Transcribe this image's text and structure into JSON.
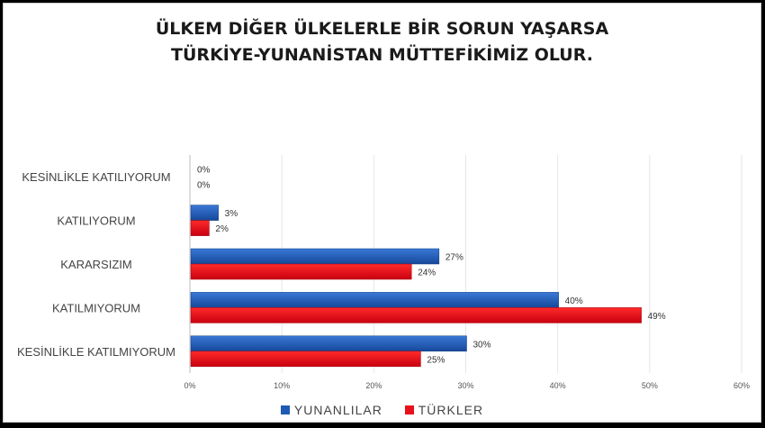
{
  "chart_data": {
    "type": "bar",
    "orientation": "horizontal",
    "title_lines": [
      "ÜLKEM DİĞER ÜLKELERLE BİR SORUN YAŞARSA",
      "TÜRKİYE-YUNANİSTAN MÜTTEFİKİMİZ OLUR."
    ],
    "categories": [
      "KESİNLİKLE KATILIYORUM",
      "KATILIYORUM",
      "KARARSIZIM",
      "KATILMIYORUM",
      "KESİNLİKLE KATILMIYORUM"
    ],
    "series": [
      {
        "name": "YUNANLILAR",
        "color": "#1f5bb5",
        "values": [
          0,
          3,
          27,
          40,
          30
        ],
        "labels": [
          "0%",
          "3%",
          "27%",
          "40%",
          "30%"
        ]
      },
      {
        "name": "TÜRKLER",
        "color": "#e8101a",
        "values": [
          0,
          2,
          24,
          49,
          25
        ],
        "labels": [
          "0%",
          "2%",
          "24%",
          "49%",
          "25%"
        ]
      }
    ],
    "xlim": [
      0,
      60
    ],
    "xticks": [
      0,
      10,
      20,
      30,
      40,
      50,
      60
    ],
    "xtick_labels": [
      "0%",
      "10%",
      "20%",
      "30%",
      "40%",
      "50%",
      "60%"
    ],
    "grid": true,
    "legend_position": "bottom"
  }
}
